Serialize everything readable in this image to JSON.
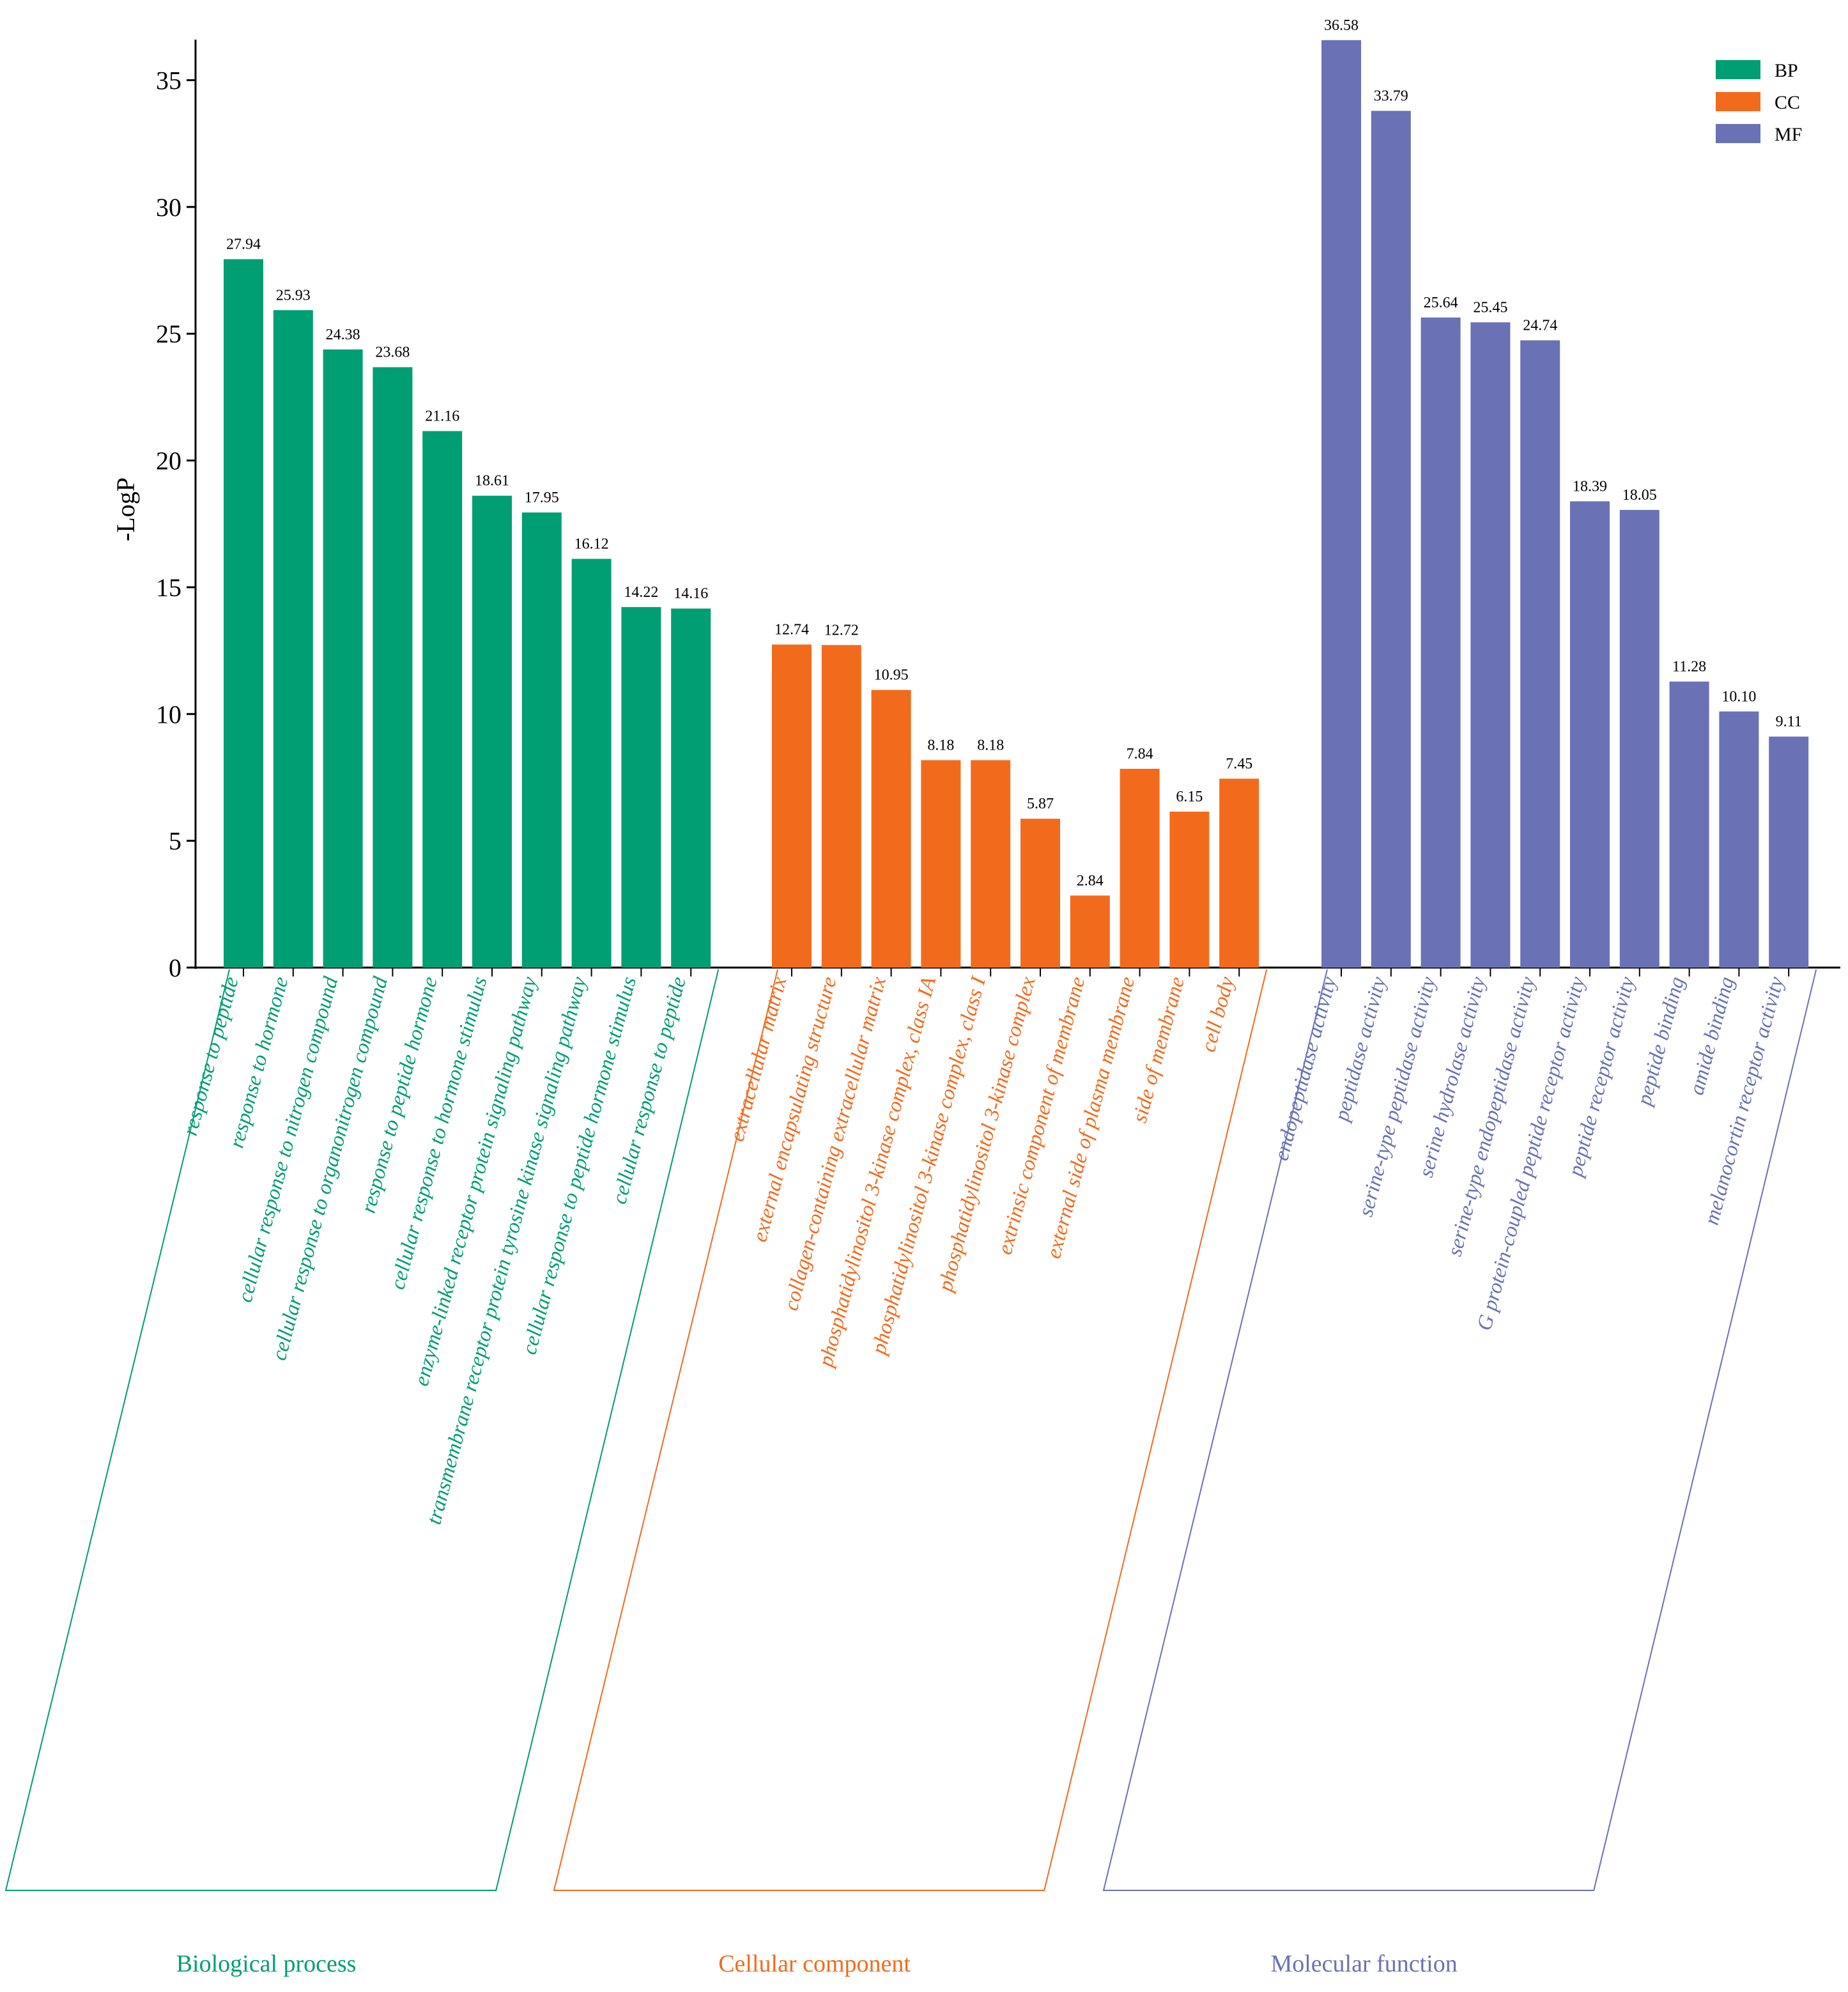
{
  "chart_data": {
    "type": "bar",
    "title": "",
    "xlabel": "",
    "ylabel": "-LogP",
    "ylim": [
      0,
      36.6
    ],
    "yticks": [
      0,
      5,
      10,
      15,
      20,
      25,
      30,
      35
    ],
    "grid": false,
    "legend_position": "top-right",
    "groups": [
      {
        "key": "BP",
        "name": "Biological process",
        "color": "#009E73",
        "categories": [
          "response to peptide",
          "response to hormone",
          "cellular response to nitrogen compound",
          "cellular response to organonitrogen compound",
          "response to peptide hormone",
          "cellular response to hormone stimulus",
          "enzyme-linked receptor protein signaling pathway",
          "transmembrane receptor protein tyrosine kinase signaling pathway",
          "cellular response to peptide hormone stimulus",
          "cellular response to peptide"
        ],
        "values": [
          27.94,
          25.93,
          24.38,
          23.68,
          21.16,
          18.61,
          17.95,
          16.12,
          14.22,
          14.16
        ],
        "value_labels": [
          "27.94",
          "25.93",
          "24.38",
          "23.68",
          "21.16",
          "18.61",
          "17.95",
          "16.12",
          "14.22",
          "14.16"
        ]
      },
      {
        "key": "CC",
        "name": "Cellular component",
        "color": "#F26B1D",
        "categories": [
          "extracellular matrix",
          "external encapsulating structure",
          "collagen-containing extracellular matrix",
          "phosphatidylinositol 3-kinase complex, class IA",
          "phosphatidylinositol 3-kinase complex, class I",
          "phosphatidylinositol 3-kinase complex",
          "extrinsic component of membrane",
          "external side of plasma membrane",
          "side of membrane",
          "cell body"
        ],
        "values": [
          12.74,
          12.72,
          10.95,
          8.18,
          8.18,
          5.87,
          2.84,
          7.84,
          6.15,
          7.45
        ],
        "value_labels": [
          "12.74",
          "12.72",
          "10.95",
          "8.18",
          "8.18",
          "5.87",
          "2.84",
          "7.84",
          "6.15",
          "7.45"
        ]
      },
      {
        "key": "MF",
        "name": "Molecular function",
        "color": "#6A72B5",
        "categories": [
          "endopeptidase activity",
          "peptidase activity",
          "serine-type peptidase activity",
          "serine hydrolase activity",
          "serine-type endopeptidase activity",
          "G protein-coupled peptide receptor activity",
          "peptide receptor activity",
          "peptide binding",
          "amide binding",
          "melanocortin receptor activity"
        ],
        "values": [
          36.58,
          33.79,
          25.64,
          25.45,
          24.74,
          18.39,
          18.05,
          11.28,
          10.1,
          9.11
        ],
        "value_labels": [
          "36.58",
          "33.79",
          "25.64",
          "25.45",
          "24.74",
          "18.39",
          "18.05",
          "11.28",
          "10.10",
          "9.11"
        ]
      }
    ],
    "legend": [
      {
        "label": "BP",
        "color": "#009E73"
      },
      {
        "label": "CC",
        "color": "#F26B1D"
      },
      {
        "label": "MF",
        "color": "#6A72B5"
      }
    ]
  }
}
